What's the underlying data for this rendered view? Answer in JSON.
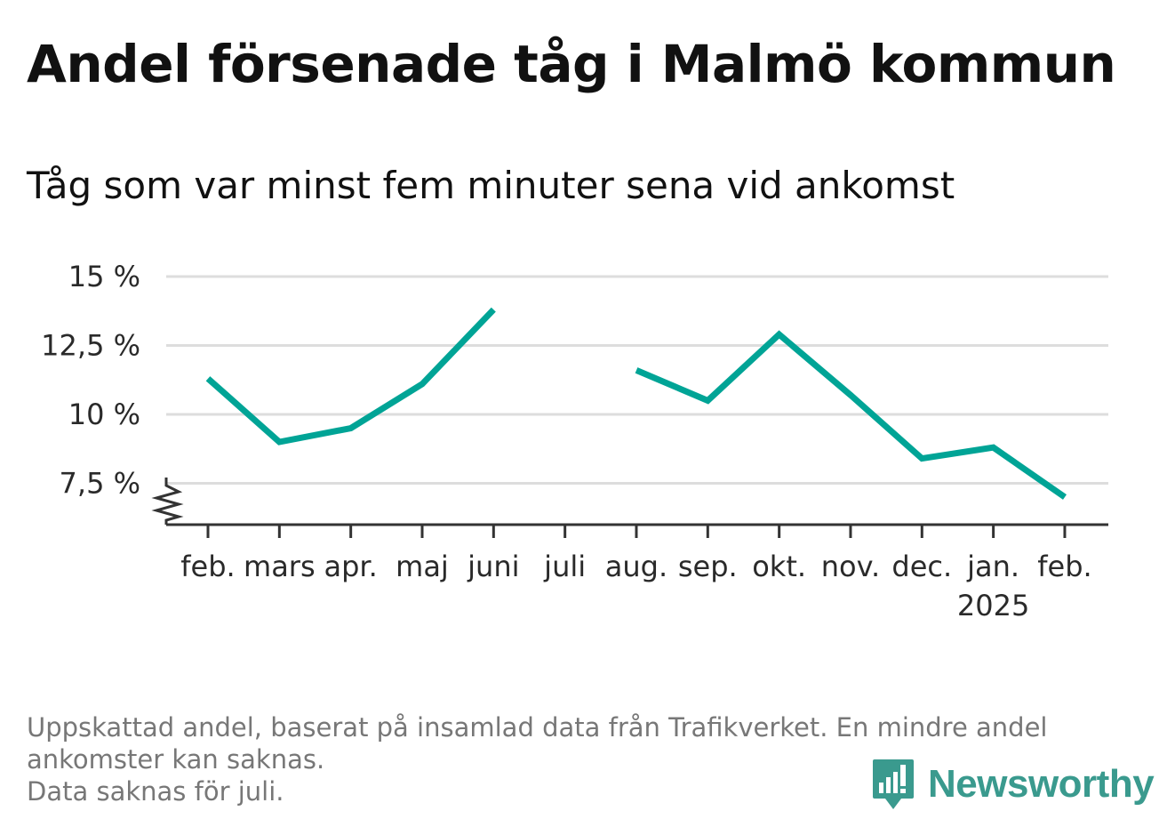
{
  "title": "Andel försenade tåg i Malmö kommun",
  "subtitle": "Tåg som var minst fem minuter sena vid ankomst",
  "colors": {
    "line": "#00a496",
    "grid": "#dddddd",
    "axis": "#333333",
    "text": "#111111",
    "note": "#777777",
    "brand": "#3a9a8e"
  },
  "chart_data": {
    "type": "line",
    "categories": [
      "feb.",
      "mars",
      "apr.",
      "maj",
      "juni",
      "juli",
      "aug.",
      "sep.",
      "okt.",
      "nov.",
      "dec.",
      "jan.",
      "feb."
    ],
    "category_sublabels": [
      "",
      "",
      "",
      "",
      "",
      "",
      "",
      "",
      "",
      "",
      "",
      "2025",
      ""
    ],
    "series": [
      {
        "values": [
          11.3,
          9.0,
          9.5,
          11.1,
          13.8,
          null,
          11.6,
          10.5,
          12.9,
          10.7,
          8.4,
          8.8,
          7.0
        ]
      }
    ],
    "y_ticks": [
      7.5,
      10,
      12.5,
      15
    ],
    "y_tick_labels": [
      "7,5 %",
      "10 %",
      "12,5 %",
      "15 %"
    ],
    "ylim": [
      6.0,
      15
    ],
    "axis_break": true,
    "grid": "horizontal",
    "legend": "none"
  },
  "notes": [
    "Uppskattad andel, baserat på insamlad data från Trafikverket. En mindre andel",
    "ankomster kan saknas.",
    "Data saknas för juli."
  ],
  "brand": {
    "name": "Newsworthy",
    "icon": "newsworthy-logo-icon"
  }
}
